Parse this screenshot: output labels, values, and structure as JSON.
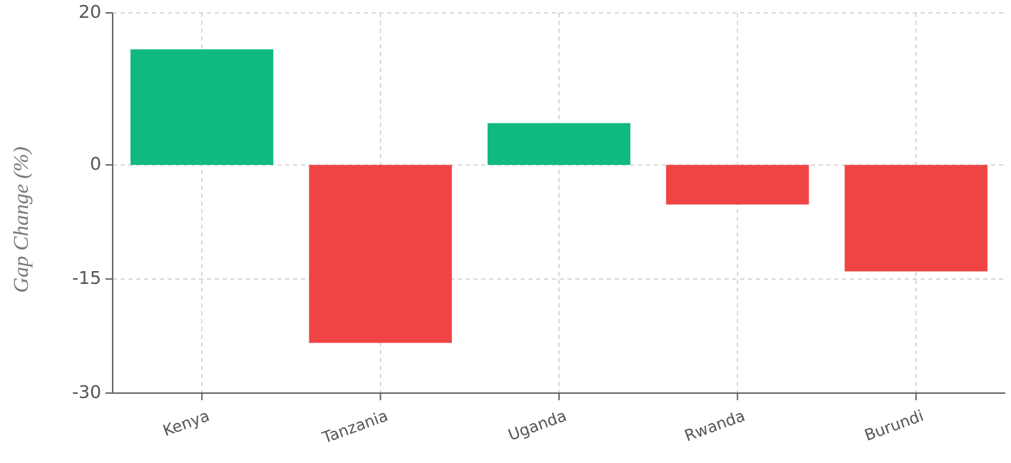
{
  "chart_data": {
    "type": "bar",
    "y_label": "Gap Change (%)",
    "categories": [
      "Kenya",
      "Tanzania",
      "Uganda",
      "Rwanda",
      "Burundi"
    ],
    "values": [
      15.2,
      -23.4,
      5.5,
      -5.2,
      -14
    ],
    "colors": [
      "#10b981",
      "#ef4444",
      "#10b981",
      "#ef4444",
      "#ef4444"
    ],
    "ylim": [
      -30,
      20
    ],
    "yticks": [
      -30,
      -15,
      0,
      20
    ],
    "grid": true
  }
}
